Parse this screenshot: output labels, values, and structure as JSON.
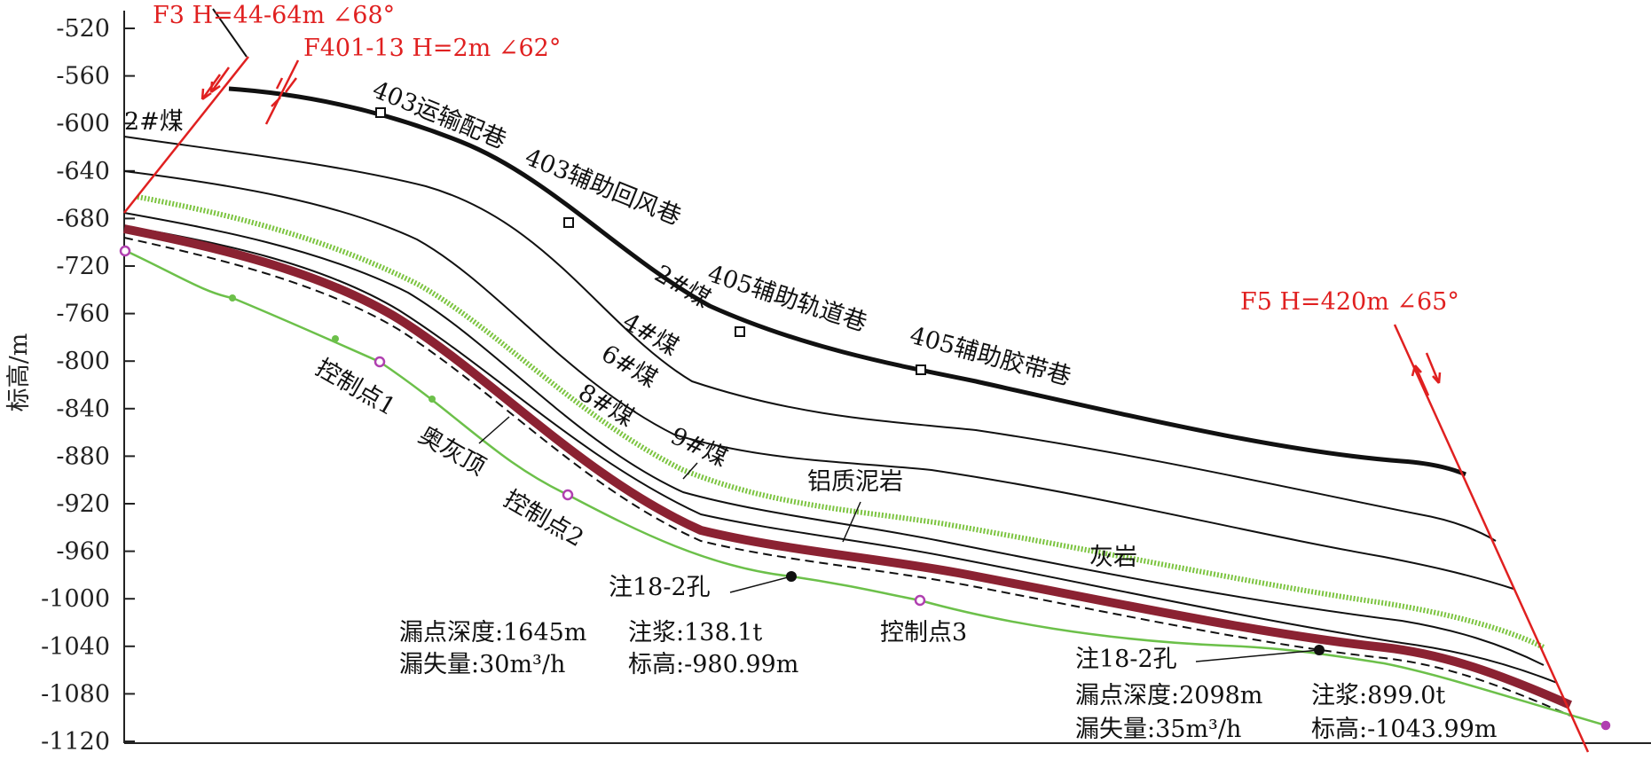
{
  "axis": {
    "ylabel": "标高/m",
    "yticks": [
      "-520",
      "-560",
      "-600",
      "-640",
      "-680",
      "-720",
      "-760",
      "-800",
      "-840",
      "-880",
      "-920",
      "-960",
      "-1000",
      "-1040",
      "-1080",
      "-1120"
    ],
    "ymin": -1120,
    "ymax": -505
  },
  "faults": {
    "f3": "F3 H=44-64m ∠68°",
    "f401": "F401-13 H=2m ∠62°",
    "f5": "F5 H=420m ∠65°"
  },
  "roadways": {
    "r403_transport": "403运输配巷",
    "r403_return": "403辅助回风巷",
    "r405_track": "405辅助轨道巷",
    "r405_belt": "405辅助胶带巷"
  },
  "strata": {
    "coal2_left": "2#煤",
    "coal2": "2#煤",
    "coal4": "4#煤",
    "coal6": "6#煤",
    "coal8": "8#煤",
    "coal9": "9#煤",
    "bauxite": "铝质泥岩",
    "limestone": "灰岩",
    "ordovician_top": "奥灰顶"
  },
  "control_points": {
    "cp1": "控制点1",
    "cp2": "控制点2",
    "cp3": "控制点3"
  },
  "boreholes": {
    "b1": {
      "name": "注18-2孔",
      "depth": "漏点深度:1645m",
      "grout": "注浆:138.1t",
      "loss": "漏失量:30m³/h",
      "elev": "标高:-980.99m"
    },
    "b2": {
      "name": "注18-2孔",
      "depth": "漏点深度:2098m",
      "grout": "注浆:899.0t",
      "loss": "漏失量:35m³/h",
      "elev": "标高:-1043.99m"
    }
  },
  "colors": {
    "fault": "#e02020",
    "ordovician": "#8b2232",
    "limestone": "#7cc440",
    "control_line": "#6cc04a",
    "control_marker": "#b040b0"
  }
}
